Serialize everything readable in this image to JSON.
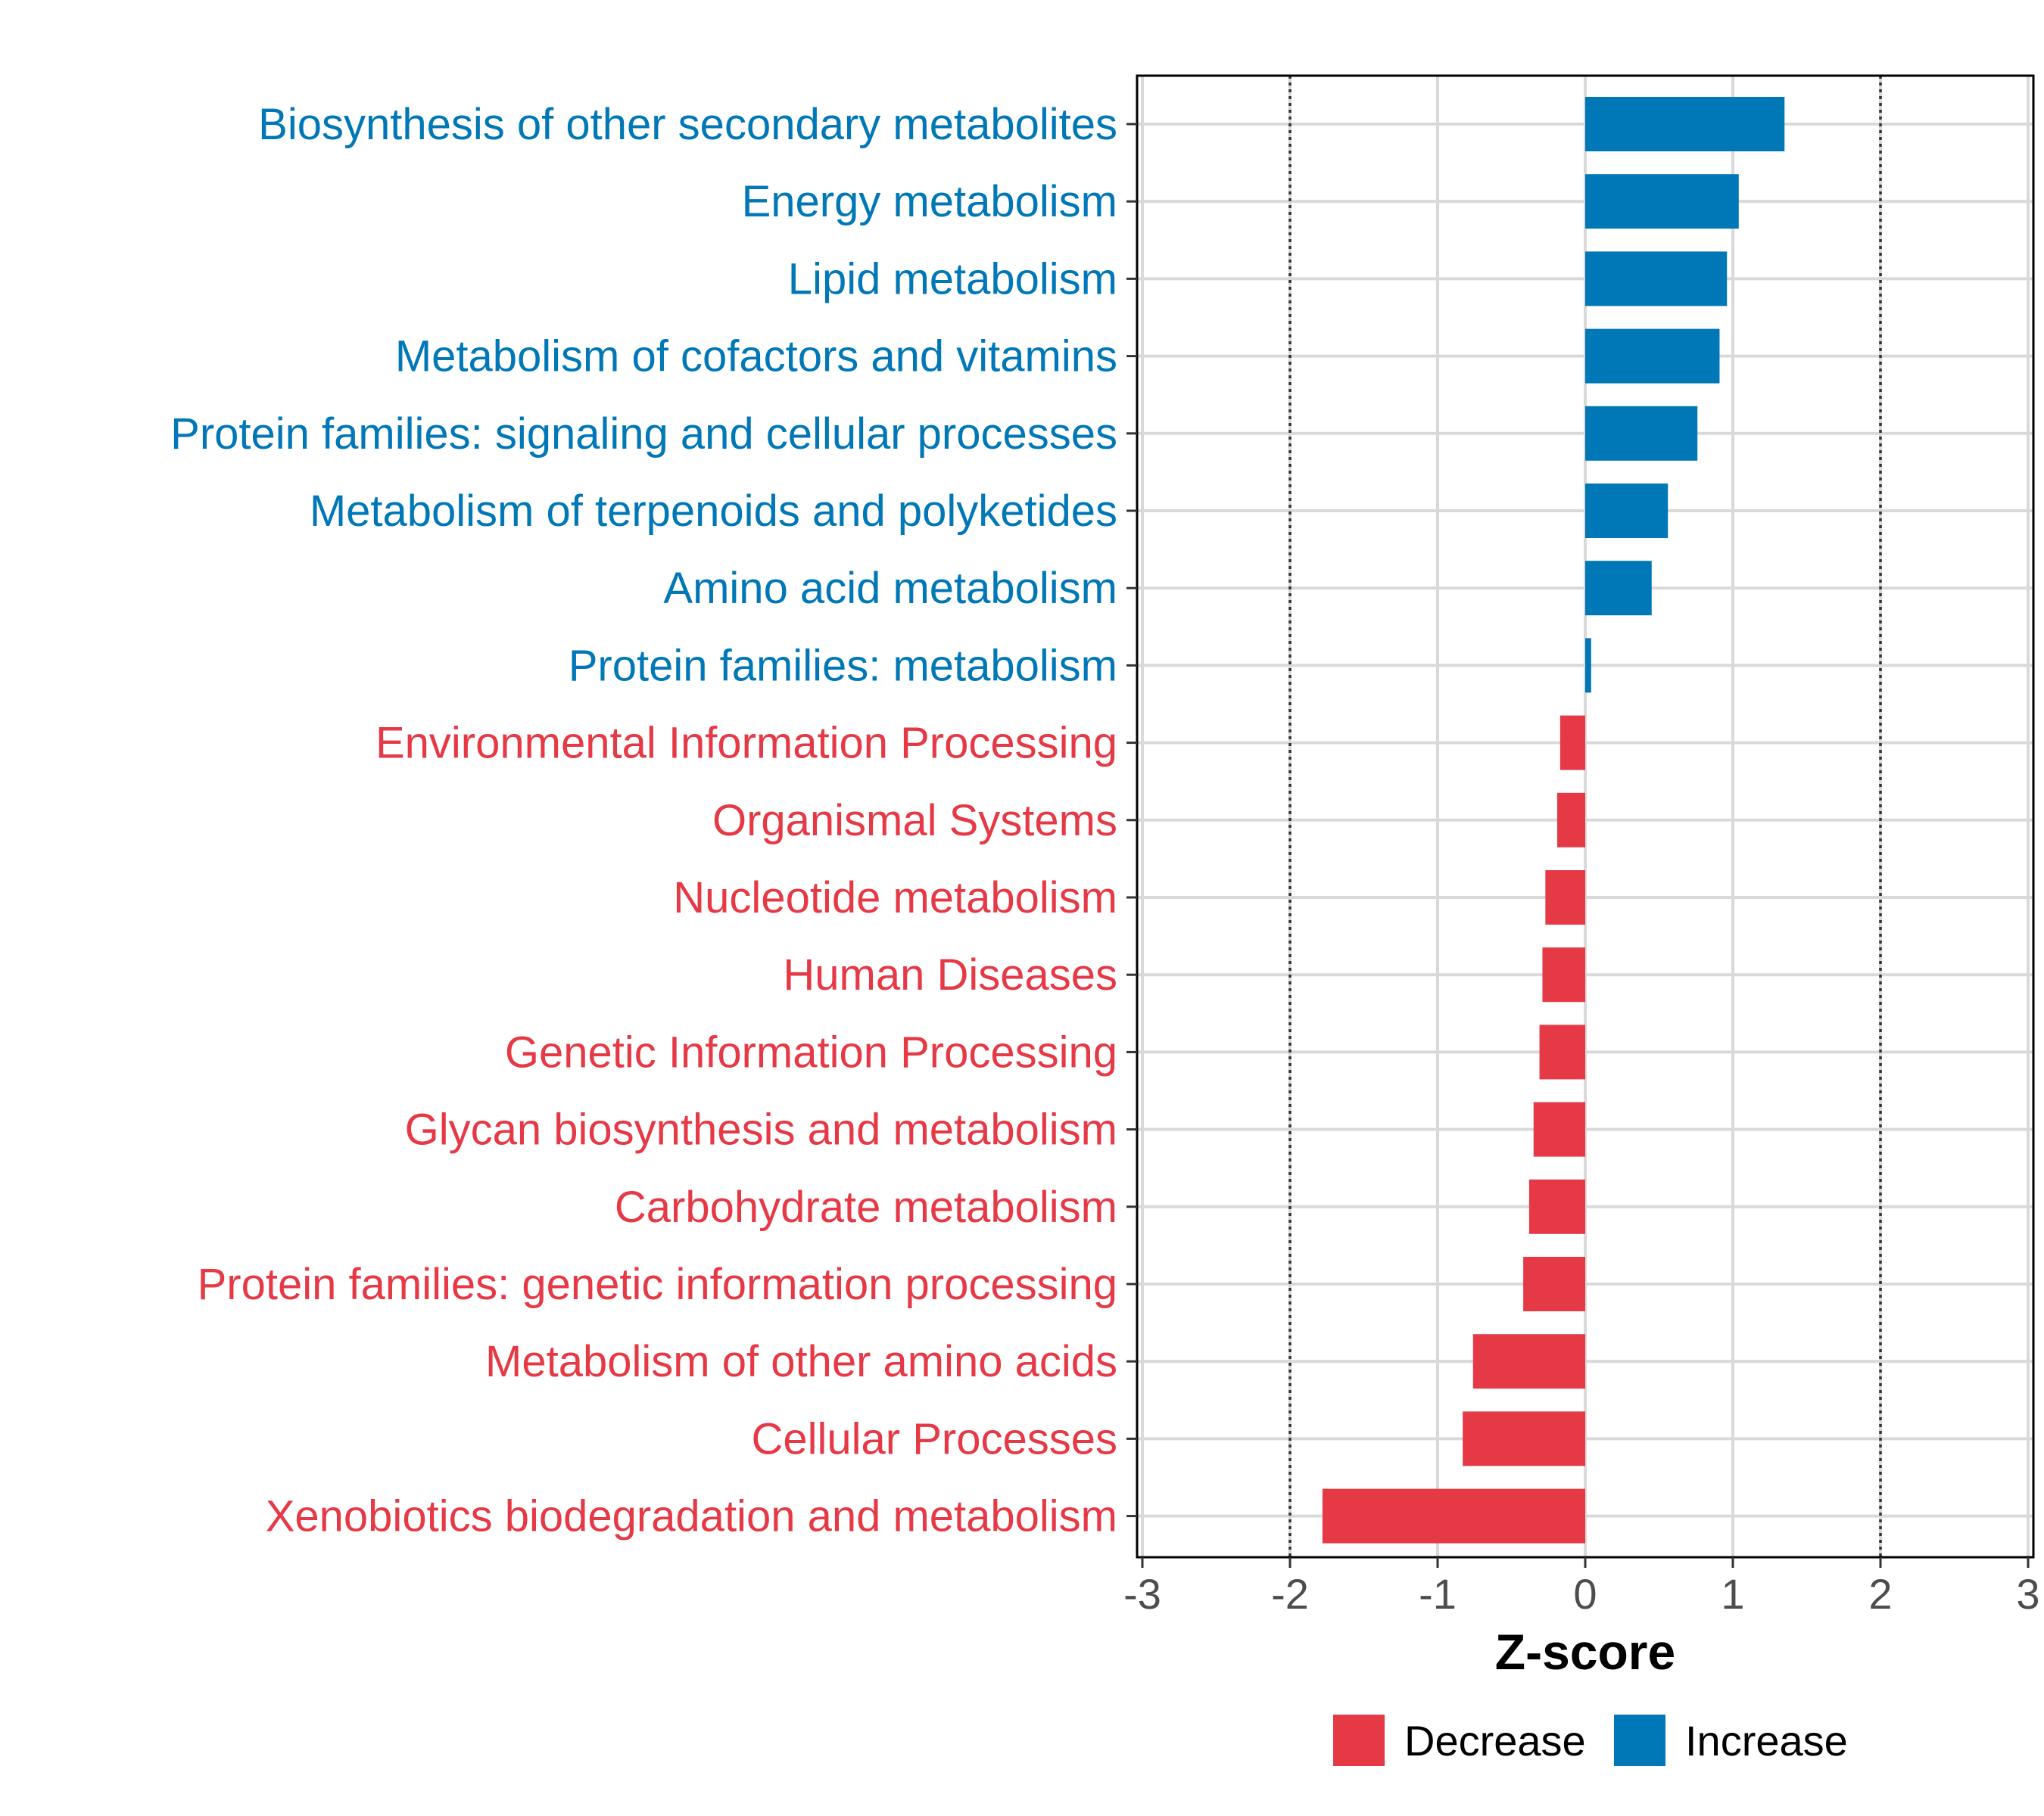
{
  "chart_data": {
    "type": "bar",
    "orientation": "horizontal",
    "xlabel": "Z-score",
    "xlim": [
      -3,
      3
    ],
    "xticks": [
      -3,
      -2,
      -1,
      0,
      1,
      2,
      3
    ],
    "xtick_labels": [
      "-3",
      "-2",
      "-1",
      "0",
      "1",
      "2",
      "3"
    ],
    "reference_lines": [
      -2,
      2
    ],
    "categories": [
      "Biosynthesis of other secondary metabolites",
      "Energy metabolism",
      "Lipid metabolism",
      "Metabolism of cofactors and vitamins",
      "Protein families: signaling and cellular processes",
      "Metabolism of terpenoids and polyketides",
      "Amino acid metabolism",
      "Protein families: metabolism",
      "Environmental Information Processing",
      "Organismal Systems",
      "Nucleotide metabolism",
      "Human Diseases",
      "Genetic Information Processing",
      "Glycan biosynthesis and metabolism",
      "Carbohydrate metabolism",
      "Protein families: genetic information processing",
      "Metabolism of other amino acids",
      "Cellular Processes",
      "Xenobiotics biodegradation and metabolism"
    ],
    "values": [
      1.35,
      1.04,
      0.96,
      0.91,
      0.76,
      0.56,
      0.45,
      0.04,
      -0.17,
      -0.19,
      -0.27,
      -0.29,
      -0.31,
      -0.35,
      -0.38,
      -0.42,
      -0.76,
      -0.83,
      -1.78
    ],
    "groups": [
      "Increase",
      "Increase",
      "Increase",
      "Increase",
      "Increase",
      "Increase",
      "Increase",
      "Increase",
      "Decrease",
      "Decrease",
      "Decrease",
      "Decrease",
      "Decrease",
      "Decrease",
      "Decrease",
      "Decrease",
      "Decrease",
      "Decrease",
      "Decrease"
    ],
    "legend": [
      {
        "name": "Decrease",
        "color": "#E63946"
      },
      {
        "name": "Increase",
        "color": "#0077B6"
      }
    ],
    "legend_position": "bottom",
    "grid": true
  }
}
